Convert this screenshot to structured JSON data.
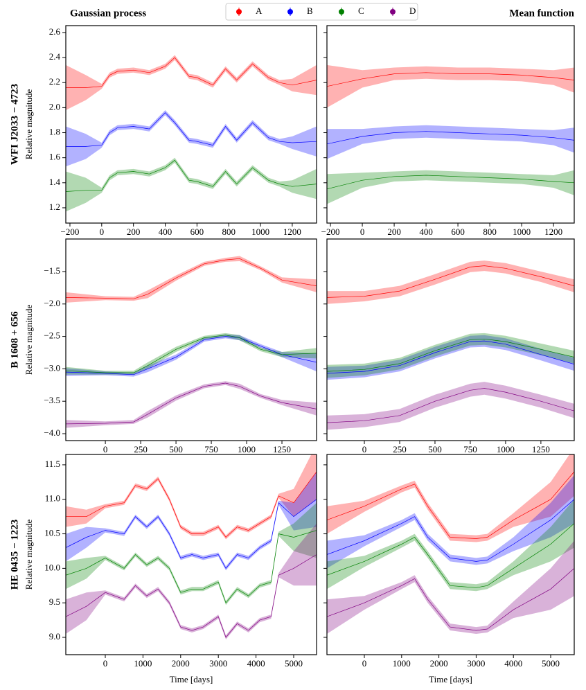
{
  "legend": [
    {
      "name": "A",
      "color": "#ff0000"
    },
    {
      "name": "B",
      "color": "#0000ff"
    },
    {
      "name": "C",
      "color": "#008000"
    },
    {
      "name": "D",
      "color": "#800080"
    }
  ],
  "chart_data": [
    {
      "type": "line",
      "title": "Gaussian process",
      "row_label": "WFI J2033 − 4723",
      "ylabel": "Relative magnitude",
      "x": [
        -226,
        -100,
        0,
        50,
        100,
        200,
        300,
        400,
        460,
        550,
        600,
        700,
        780,
        850,
        950,
        1050,
        1120,
        1200,
        1353
      ],
      "series": [
        {
          "color": "#ff0000",
          "values": [
            2.16,
            2.16,
            2.17,
            2.26,
            2.29,
            2.3,
            2.28,
            2.33,
            2.4,
            2.25,
            2.24,
            2.18,
            2.31,
            2.22,
            2.35,
            2.24,
            2.2,
            2.18,
            2.22
          ],
          "errors": [
            0.18,
            0.1,
            0.02,
            0.02,
            0.02,
            0.02,
            0.02,
            0.02,
            0.02,
            0.02,
            0.02,
            0.02,
            0.02,
            0.02,
            0.02,
            0.02,
            0.02,
            0.05,
            0.12
          ]
        },
        {
          "color": "#0000ff",
          "values": [
            1.69,
            1.69,
            1.7,
            1.8,
            1.84,
            1.85,
            1.83,
            1.96,
            1.88,
            1.74,
            1.73,
            1.7,
            1.85,
            1.74,
            1.88,
            1.76,
            1.73,
            1.72,
            1.73
          ],
          "errors": [
            0.16,
            0.1,
            0.02,
            0.02,
            0.02,
            0.02,
            0.02,
            0.02,
            0.02,
            0.02,
            0.02,
            0.02,
            0.02,
            0.02,
            0.02,
            0.02,
            0.02,
            0.05,
            0.12
          ]
        },
        {
          "color": "#008000",
          "values": [
            1.33,
            1.34,
            1.34,
            1.44,
            1.48,
            1.49,
            1.47,
            1.52,
            1.58,
            1.42,
            1.41,
            1.37,
            1.49,
            1.39,
            1.52,
            1.42,
            1.39,
            1.37,
            1.39
          ],
          "errors": [
            0.16,
            0.1,
            0.02,
            0.02,
            0.02,
            0.02,
            0.02,
            0.02,
            0.02,
            0.02,
            0.02,
            0.02,
            0.02,
            0.02,
            0.02,
            0.02,
            0.02,
            0.05,
            0.12
          ]
        }
      ],
      "xlim": [
        -226,
        1353
      ],
      "xticks": [
        {
          "value": -200,
          "label": "−200"
        },
        0,
        200,
        400,
        600,
        800,
        1000,
        1200
      ],
      "ylim": [
        1.078,
        2.655
      ],
      "yticks": [
        1.2,
        1.4,
        1.6,
        1.8,
        {
          "value": 2.0,
          "label": "2.0"
        },
        2.2,
        2.4,
        2.6
      ]
    },
    {
      "type": "line",
      "title": "Mean function",
      "x": [
        -222,
        0,
        200,
        400,
        600,
        800,
        1000,
        1200,
        1330
      ],
      "series": [
        {
          "color": "#ff0000",
          "values": [
            2.17,
            2.23,
            2.27,
            2.28,
            2.27,
            2.27,
            2.26,
            2.24,
            2.22
          ],
          "errors": [
            0.17,
            0.07,
            0.05,
            0.05,
            0.05,
            0.05,
            0.05,
            0.06,
            0.1
          ]
        },
        {
          "color": "#0000ff",
          "values": [
            1.71,
            1.77,
            1.8,
            1.81,
            1.8,
            1.79,
            1.78,
            1.76,
            1.74
          ],
          "errors": [
            0.12,
            0.06,
            0.05,
            0.05,
            0.05,
            0.05,
            0.05,
            0.06,
            0.1
          ]
        },
        {
          "color": "#008000",
          "values": [
            1.35,
            1.42,
            1.45,
            1.46,
            1.45,
            1.44,
            1.43,
            1.41,
            1.4
          ],
          "errors": [
            0.12,
            0.06,
            0.04,
            0.04,
            0.04,
            0.04,
            0.04,
            0.05,
            0.1
          ]
        }
      ],
      "xlim": [
        -222,
        1330
      ],
      "xticks": [
        {
          "value": -200,
          "label": "−200"
        },
        0,
        200,
        400,
        600,
        800,
        1000,
        1200
      ],
      "ylim": [
        1.078,
        2.655
      ],
      "yticks": [
        1.2,
        1.4,
        1.6,
        1.8,
        2.0,
        2.2,
        2.4,
        2.6
      ]
    },
    {
      "type": "line",
      "row_label": "B 1608 + 656",
      "ylabel": "Relative magnitude",
      "x": [
        -280,
        0,
        200,
        300,
        500,
        700,
        850,
        950,
        1100,
        1250,
        1495
      ],
      "series": [
        {
          "color": "#ff0000",
          "values": [
            -1.9,
            -1.91,
            -1.92,
            -1.85,
            -1.6,
            -1.38,
            -1.32,
            -1.3,
            -1.45,
            -1.63,
            -1.72
          ],
          "errors": [
            0.08,
            0.03,
            0.03,
            0.06,
            0.04,
            0.03,
            0.03,
            0.04,
            0.03,
            0.04,
            0.1
          ]
        },
        {
          "color": "#0000ff",
          "values": [
            -3.05,
            -3.07,
            -3.09,
            -3.0,
            -2.82,
            -2.55,
            -2.5,
            -2.52,
            -2.65,
            -2.78,
            -2.9
          ],
          "errors": [
            0.06,
            0.03,
            0.03,
            0.05,
            0.04,
            0.03,
            0.03,
            0.04,
            0.03,
            0.04,
            0.14
          ]
        },
        {
          "color": "#008000",
          "values": [
            -3.03,
            -3.06,
            -3.06,
            -2.95,
            -2.7,
            -2.52,
            -2.48,
            -2.52,
            -2.7,
            -2.78,
            -2.76
          ],
          "errors": [
            0.06,
            0.03,
            0.03,
            0.05,
            0.04,
            0.03,
            0.03,
            0.04,
            0.03,
            0.04,
            0.08
          ]
        },
        {
          "color": "#800080",
          "values": [
            -3.85,
            -3.84,
            -3.82,
            -3.7,
            -3.45,
            -3.27,
            -3.22,
            -3.27,
            -3.42,
            -3.52,
            -3.62
          ],
          "errors": [
            0.06,
            0.03,
            0.03,
            0.05,
            0.04,
            0.03,
            0.03,
            0.04,
            0.03,
            0.04,
            0.1
          ]
        }
      ],
      "xlim": [
        -280,
        1495
      ],
      "xticks": [
        0,
        250,
        500,
        750,
        1000,
        1250
      ],
      "ylim": [
        -4.107,
        -0.998
      ],
      "yticks": [
        {
          "value": -4.0,
          "label": "−4.0"
        },
        {
          "value": -3.5,
          "label": "−3.5"
        },
        {
          "value": -3.0,
          "label": "−3.0"
        },
        {
          "value": -2.5,
          "label": "−2.5"
        },
        {
          "value": -2.0,
          "label": "−2.0"
        },
        {
          "value": -1.5,
          "label": "−1.5"
        }
      ]
    },
    {
      "type": "line",
      "x": [
        -265,
        0,
        250,
        500,
        750,
        850,
        1000,
        1250,
        1486
      ],
      "series": [
        {
          "color": "#ff0000",
          "values": [
            -1.9,
            -1.88,
            -1.8,
            -1.62,
            -1.43,
            -1.41,
            -1.45,
            -1.58,
            -1.72
          ],
          "errors": [
            0.1,
            0.08,
            0.08,
            0.08,
            0.08,
            0.08,
            0.08,
            0.08,
            0.1
          ]
        },
        {
          "color": "#0000ff",
          "values": [
            -3.07,
            -3.04,
            -2.95,
            -2.75,
            -2.58,
            -2.57,
            -2.62,
            -2.78,
            -2.93
          ],
          "errors": [
            0.1,
            0.09,
            0.09,
            0.09,
            0.09,
            0.09,
            0.09,
            0.09,
            0.1
          ]
        },
        {
          "color": "#008000",
          "values": [
            -3.04,
            -3.01,
            -2.92,
            -2.72,
            -2.55,
            -2.54,
            -2.58,
            -2.7,
            -2.82
          ],
          "errors": [
            0.1,
            0.09,
            0.09,
            0.09,
            0.09,
            0.09,
            0.09,
            0.09,
            0.1
          ]
        },
        {
          "color": "#800080",
          "values": [
            -3.83,
            -3.8,
            -3.72,
            -3.5,
            -3.33,
            -3.3,
            -3.36,
            -3.5,
            -3.65
          ],
          "errors": [
            0.11,
            0.1,
            0.1,
            0.1,
            0.1,
            0.1,
            0.1,
            0.1,
            0.11
          ]
        }
      ],
      "xlim": [
        -265,
        1486
      ],
      "xticks": [
        0,
        250,
        500,
        750,
        1000,
        1250
      ],
      "ylim": [
        -4.107,
        -0.998
      ],
      "yticks": [
        -4.0,
        -3.5,
        -3.0,
        -2.5,
        -2.0,
        -1.5
      ]
    },
    {
      "type": "line",
      "row_label": "HE 0435 − 1223",
      "ylabel": "Relative magnitude",
      "xlabel": "Time [days]",
      "x": [
        -1048,
        -500,
        0,
        500,
        800,
        1100,
        1400,
        1700,
        2000,
        2300,
        2600,
        3000,
        3200,
        3500,
        3800,
        4100,
        4400,
        4600,
        5000,
        5607
      ],
      "series": [
        {
          "color": "#ff0000",
          "values": [
            10.75,
            10.75,
            10.9,
            10.95,
            11.2,
            11.15,
            11.3,
            11.0,
            10.6,
            10.5,
            10.5,
            10.6,
            10.45,
            10.6,
            10.55,
            10.65,
            10.75,
            11.05,
            10.95,
            11.4
          ],
          "errors": [
            0.15,
            0.1,
            0.03,
            0.03,
            0.03,
            0.03,
            0.03,
            0.03,
            0.03,
            0.03,
            0.03,
            0.03,
            0.03,
            0.03,
            0.03,
            0.03,
            0.03,
            0.03,
            0.2,
            0.4
          ]
        },
        {
          "color": "#0000ff",
          "values": [
            10.3,
            10.45,
            10.55,
            10.5,
            10.75,
            10.6,
            10.75,
            10.5,
            10.15,
            10.2,
            10.15,
            10.2,
            10.0,
            10.2,
            10.15,
            10.3,
            10.4,
            10.95,
            10.75,
            11.0
          ],
          "errors": [
            0.2,
            0.15,
            0.03,
            0.03,
            0.03,
            0.03,
            0.03,
            0.03,
            0.03,
            0.03,
            0.03,
            0.03,
            0.03,
            0.03,
            0.03,
            0.03,
            0.03,
            0.03,
            0.2,
            0.4
          ]
        },
        {
          "color": "#008000",
          "values": [
            9.9,
            10.0,
            10.15,
            10.0,
            10.2,
            10.05,
            10.15,
            10.0,
            9.65,
            9.7,
            9.7,
            9.8,
            9.5,
            9.7,
            9.6,
            9.75,
            9.8,
            10.5,
            10.45,
            10.55
          ],
          "errors": [
            0.2,
            0.15,
            0.03,
            0.03,
            0.03,
            0.03,
            0.03,
            0.03,
            0.03,
            0.03,
            0.03,
            0.03,
            0.03,
            0.03,
            0.03,
            0.03,
            0.03,
            0.03,
            0.2,
            0.4
          ]
        },
        {
          "color": "#800080",
          "values": [
            9.3,
            9.45,
            9.65,
            9.55,
            9.75,
            9.6,
            9.7,
            9.5,
            9.15,
            9.1,
            9.15,
            9.3,
            9.0,
            9.2,
            9.1,
            9.25,
            9.3,
            9.9,
            10.0,
            10.2
          ],
          "errors": [
            0.25,
            0.2,
            0.03,
            0.03,
            0.03,
            0.03,
            0.03,
            0.03,
            0.03,
            0.03,
            0.03,
            0.03,
            0.03,
            0.03,
            0.03,
            0.03,
            0.03,
            0.03,
            0.25,
            0.45
          ]
        }
      ],
      "xlim": [
        -1048,
        5607
      ],
      "xticks": [
        0,
        1000,
        2000,
        3000,
        4000,
        5000
      ],
      "ylim": [
        8.749,
        11.65
      ],
      "yticks": [
        {
          "value": 9.0,
          "label": "9.0"
        },
        9.5,
        {
          "value": 10.0,
          "label": "10.0"
        },
        10.5,
        {
          "value": 11.0,
          "label": "11.0"
        },
        11.5
      ]
    },
    {
      "type": "line",
      "xlabel": "Time [days]",
      "x": [
        -1004,
        0,
        1000,
        1350,
        1700,
        2300,
        3000,
        3300,
        4000,
        5000,
        5632
      ],
      "series": [
        {
          "color": "#ff0000",
          "values": [
            10.7,
            10.9,
            11.15,
            11.22,
            10.9,
            10.45,
            10.43,
            10.45,
            10.7,
            11.0,
            11.4
          ],
          "errors": [
            0.2,
            0.08,
            0.05,
            0.05,
            0.05,
            0.05,
            0.05,
            0.05,
            0.1,
            0.25,
            0.35
          ]
        },
        {
          "color": "#0000ff",
          "values": [
            10.2,
            10.4,
            10.65,
            10.75,
            10.45,
            10.15,
            10.1,
            10.12,
            10.35,
            10.7,
            11.0
          ],
          "errors": [
            0.2,
            0.08,
            0.05,
            0.05,
            0.05,
            0.05,
            0.05,
            0.05,
            0.1,
            0.25,
            0.35
          ]
        },
        {
          "color": "#008000",
          "values": [
            9.9,
            10.1,
            10.35,
            10.45,
            10.2,
            9.75,
            9.72,
            9.75,
            10.0,
            10.35,
            10.65
          ],
          "errors": [
            0.2,
            0.08,
            0.05,
            0.05,
            0.05,
            0.05,
            0.05,
            0.05,
            0.1,
            0.25,
            0.35
          ]
        },
        {
          "color": "#800080",
          "values": [
            9.3,
            9.5,
            9.75,
            9.85,
            9.55,
            9.15,
            9.1,
            9.12,
            9.4,
            9.7,
            10.0
          ],
          "errors": [
            0.25,
            0.1,
            0.05,
            0.05,
            0.05,
            0.05,
            0.05,
            0.05,
            0.12,
            0.3,
            0.4
          ]
        }
      ],
      "xlim": [
        -1004,
        5632
      ],
      "xticks": [
        0,
        1000,
        2000,
        3000,
        4000,
        5000
      ],
      "ylim": [
        8.749,
        11.65
      ],
      "yticks": [
        9.0,
        9.5,
        10.0,
        10.5,
        11.0,
        11.5
      ]
    }
  ]
}
